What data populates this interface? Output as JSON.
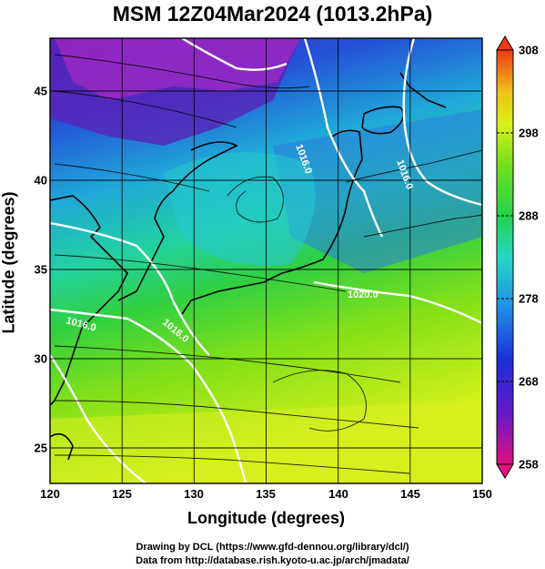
{
  "title": "MSM 12Z04Mar2024 (1013.2hPa)",
  "map": {
    "lon_range": [
      120,
      150
    ],
    "lat_range": [
      22.5,
      47.5
    ],
    "x_ticks": [
      "120",
      "125",
      "130",
      "135",
      "140",
      "145",
      "150"
    ],
    "y_ticks": [
      "25",
      "30",
      "35",
      "40",
      "45"
    ],
    "x_label": "Longitude (degrees)",
    "y_label": "Latitude  (degrees)",
    "grid": true,
    "contour_labels": [
      "1020.0",
      "1016.0",
      "1016.0",
      "1016.0",
      "1016.0"
    ]
  },
  "colorbar": {
    "ticks": [
      "308",
      "298",
      "288",
      "278",
      "268",
      "258"
    ],
    "min": 258,
    "max": 308
  },
  "credits": {
    "line1": "Drawing by DCL (https://www.gfd-dennou.org/library/dcl/)",
    "line2": "Data from http://database.rish.kyoto-u.ac.jp/arch/jmadata/"
  }
}
